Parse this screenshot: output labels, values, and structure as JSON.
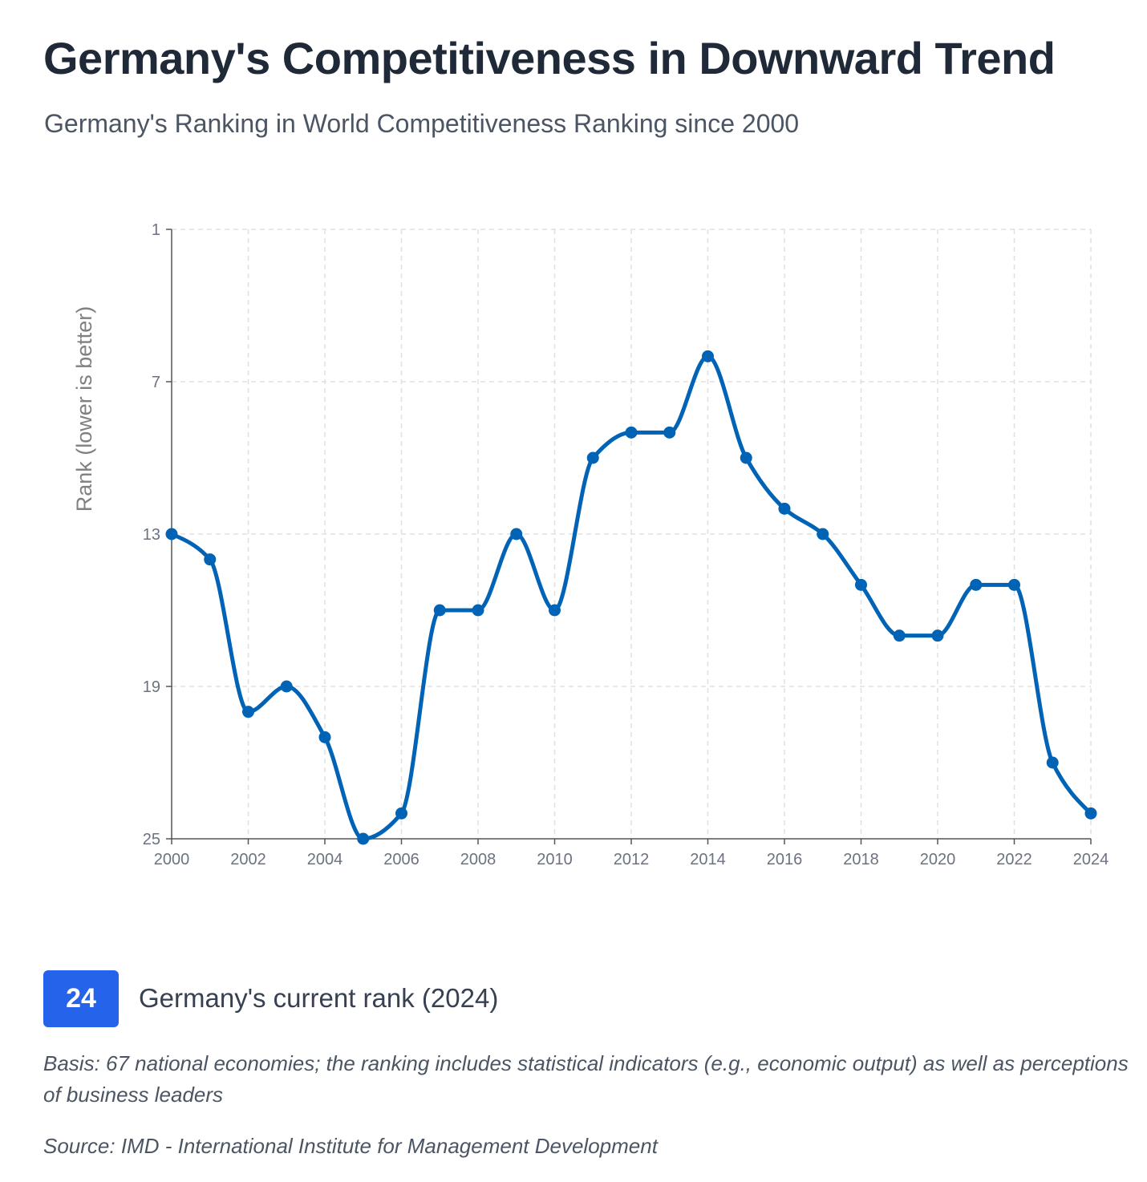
{
  "header": {
    "title": "Germany's Competitiveness in Downward Trend",
    "subtitle": "Germany's Ranking in World Competitiveness Ranking since 2000"
  },
  "chart_data": {
    "type": "line",
    "title": "Germany's Competitiveness in Downward Trend",
    "xlabel": "",
    "ylabel": "Rank (lower is better)",
    "x": [
      2000,
      2001,
      2002,
      2003,
      2004,
      2005,
      2006,
      2007,
      2008,
      2009,
      2010,
      2011,
      2012,
      2013,
      2014,
      2015,
      2016,
      2017,
      2018,
      2019,
      2020,
      2021,
      2022,
      2023,
      2024
    ],
    "series": [
      {
        "name": "Germany",
        "values": [
          13,
          14,
          20,
          19,
          21,
          25,
          24,
          16,
          16,
          13,
          16,
          10,
          9,
          9,
          6,
          10,
          12,
          13,
          15,
          17,
          17,
          15,
          15,
          22,
          24
        ],
        "color": "#0063b5"
      }
    ],
    "xlim": [
      2000,
      2024
    ],
    "ylim": [
      1,
      25
    ],
    "y_inverted": true,
    "xticks": [
      "2000",
      "2002",
      "2004",
      "2006",
      "2008",
      "2010",
      "2012",
      "2014",
      "2016",
      "2018",
      "2020",
      "2022",
      "2024"
    ],
    "yticks": [
      "1",
      "7",
      "13",
      "19",
      "25"
    ],
    "grid": true
  },
  "highlight": {
    "value": "24",
    "label": "Germany's current rank (2024)",
    "color": "#2563eb"
  },
  "notes": {
    "basis": "Basis: 67 national economies; the ranking includes statistical indicators (e.g., economic output) as well as perceptions of business leaders",
    "source": "Source: IMD - International Institute for Management Development"
  }
}
